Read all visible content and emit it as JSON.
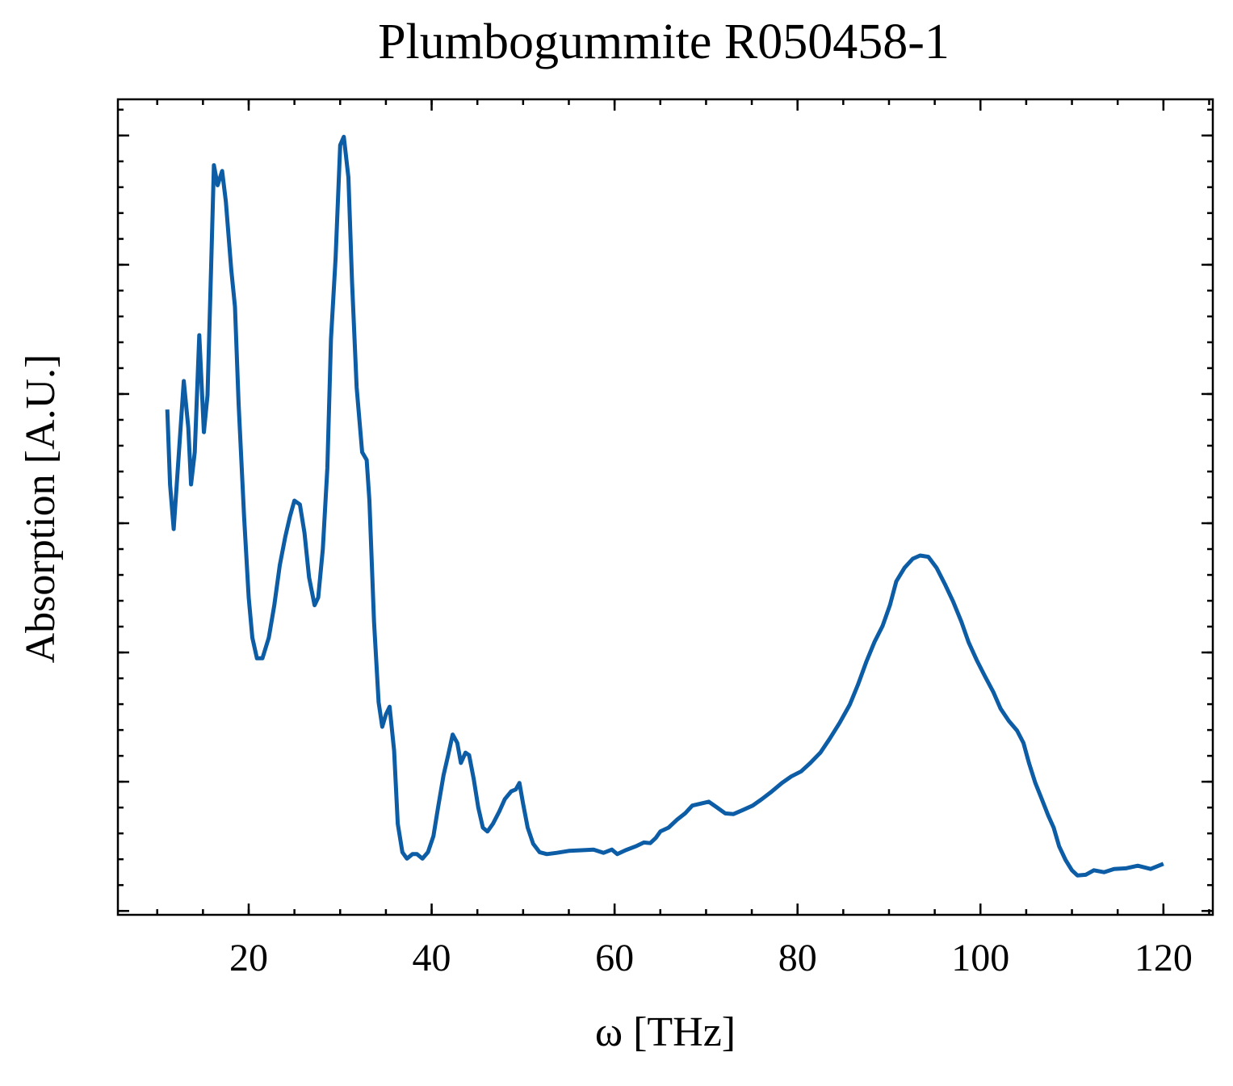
{
  "chart_data": {
    "type": "line",
    "title": "Plumbogummite R050458-1",
    "x_label": "ω [THz]",
    "y_label": "Absorption [A.U.]",
    "x": [
      11.1,
      11.4,
      11.8,
      12.2,
      12.9,
      13.4,
      13.7,
      14.1,
      14.6,
      15.1,
      15.5,
      15.9,
      16.2,
      16.6,
      17.1,
      17.5,
      18.1,
      18.5,
      18.9,
      19.5,
      20.0,
      20.4,
      20.9,
      21.5,
      22.2,
      22.8,
      23.4,
      24.0,
      24.5,
      25.0,
      25.6,
      26.1,
      26.6,
      27.2,
      27.6,
      28.1,
      28.6,
      29.0,
      29.5,
      30.0,
      30.4,
      30.9,
      31.3,
      31.8,
      32.4,
      32.9,
      33.2,
      33.7,
      34.2,
      34.6,
      35.0,
      35.4,
      35.9,
      36.3,
      36.8,
      37.3,
      37.9,
      38.4,
      39.0,
      39.6,
      40.2,
      40.7,
      41.3,
      41.8,
      42.3,
      42.8,
      43.2,
      43.7,
      44.1,
      44.6,
      45.1,
      45.6,
      46.1,
      46.7,
      47.4,
      48.0,
      48.7,
      49.2,
      49.6,
      50.0,
      50.5,
      51.1,
      51.8,
      52.6,
      53.7,
      55.0,
      56.4,
      57.7,
      58.8,
      59.7,
      60.3,
      61.2,
      62.3,
      63.2,
      63.9,
      64.5,
      65.0,
      65.9,
      66.8,
      67.7,
      68.5,
      69.4,
      70.3,
      71.2,
      72.1,
      73.0,
      74.0,
      75.1,
      76.1,
      77.2,
      78.3,
      79.3,
      80.4,
      81.4,
      82.5,
      83.5,
      84.6,
      85.7,
      86.6,
      87.5,
      88.4,
      89.3,
      90.1,
      90.8,
      91.7,
      92.6,
      93.4,
      94.3,
      95.2,
      96.1,
      97.0,
      97.9,
      98.7,
      99.6,
      100.5,
      101.4,
      102.2,
      103.1,
      104.0,
      104.7,
      105.3,
      106.0,
      106.7,
      107.4,
      108.0,
      108.6,
      109.3,
      110.0,
      110.6,
      111.5,
      112.4,
      113.5,
      114.6,
      115.9,
      117.2,
      118.6,
      120.0
    ],
    "series": [
      {
        "color": "#0c5da5",
        "values": [
          0.776,
          0.66,
          0.591,
          0.673,
          0.82,
          0.748,
          0.66,
          0.71,
          0.891,
          0.741,
          0.798,
          0.998,
          1.154,
          1.123,
          1.145,
          1.098,
          0.991,
          0.935,
          0.785,
          0.61,
          0.485,
          0.423,
          0.391,
          0.391,
          0.423,
          0.473,
          0.535,
          0.579,
          0.61,
          0.635,
          0.629,
          0.585,
          0.516,
          0.473,
          0.485,
          0.56,
          0.685,
          0.885,
          1.01,
          1.185,
          1.198,
          1.135,
          0.973,
          0.81,
          0.71,
          0.698,
          0.635,
          0.448,
          0.323,
          0.285,
          0.304,
          0.316,
          0.248,
          0.135,
          0.091,
          0.081,
          0.088,
          0.088,
          0.081,
          0.091,
          0.116,
          0.16,
          0.21,
          0.241,
          0.273,
          0.26,
          0.229,
          0.245,
          0.241,
          0.204,
          0.16,
          0.129,
          0.123,
          0.135,
          0.154,
          0.173,
          0.185,
          0.188,
          0.198,
          0.166,
          0.129,
          0.104,
          0.091,
          0.088,
          0.09,
          0.093,
          0.094,
          0.095,
          0.09,
          0.095,
          0.088,
          0.094,
          0.1,
          0.106,
          0.105,
          0.113,
          0.123,
          0.129,
          0.141,
          0.151,
          0.163,
          0.166,
          0.169,
          0.16,
          0.151,
          0.15,
          0.156,
          0.163,
          0.173,
          0.185,
          0.198,
          0.208,
          0.216,
          0.229,
          0.245,
          0.266,
          0.291,
          0.319,
          0.35,
          0.385,
          0.416,
          0.441,
          0.473,
          0.51,
          0.531,
          0.545,
          0.55,
          0.548,
          0.531,
          0.506,
          0.479,
          0.448,
          0.416,
          0.388,
          0.363,
          0.339,
          0.313,
          0.294,
          0.279,
          0.26,
          0.229,
          0.198,
          0.173,
          0.148,
          0.129,
          0.1,
          0.079,
          0.063,
          0.055,
          0.056,
          0.063,
          0.06,
          0.065,
          0.066,
          0.07,
          0.065,
          0.073
        ]
      }
    ],
    "xlim": [
      5.7,
      125.4
    ],
    "xticks": [
      20,
      40,
      60,
      80,
      100,
      120
    ],
    "ylim": [
      -0.006,
      1.256
    ],
    "yticks": [
      0,
      0.2,
      0.4,
      0.6,
      0.8,
      1.0,
      1.2
    ]
  }
}
